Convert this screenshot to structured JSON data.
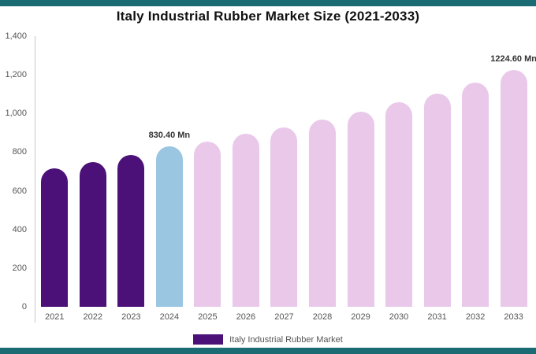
{
  "page": {
    "border_color": "#1a6b74",
    "background": "#ffffff"
  },
  "chart_data": {
    "type": "bar",
    "title": "Italy Industrial Rubber Market Size (2021-2033)",
    "xlabel": "",
    "ylabel": "",
    "categories": [
      "2021",
      "2022",
      "2023",
      "2024",
      "2025",
      "2026",
      "2027",
      "2028",
      "2029",
      "2030",
      "2031",
      "2032",
      "2033"
    ],
    "values": [
      715,
      750,
      785,
      830.4,
      855,
      895,
      930,
      970,
      1010,
      1060,
      1105,
      1160,
      1224.6
    ],
    "colors": [
      "#4b1178",
      "#4b1178",
      "#4b1178",
      "#9ac6e1",
      "#e9c8ea",
      "#e9c8ea",
      "#e9c8ea",
      "#e9c8ea",
      "#e9c8ea",
      "#e9c8ea",
      "#e9c8ea",
      "#e9c8ea",
      "#e9c8ea"
    ],
    "ylim": [
      0,
      1400
    ],
    "ytick_labels": [
      "0",
      "200",
      "400",
      "600",
      "800",
      "1,000",
      "1,200",
      "1,400"
    ],
    "grid": false,
    "annotations": [
      {
        "index": 3,
        "text": "830.40 Mn"
      },
      {
        "index": 12,
        "text": "1224.60 Mn"
      }
    ],
    "legend": {
      "position": "bottom",
      "label": "Italy Industrial Rubber Market",
      "color": "#4b1178"
    }
  }
}
